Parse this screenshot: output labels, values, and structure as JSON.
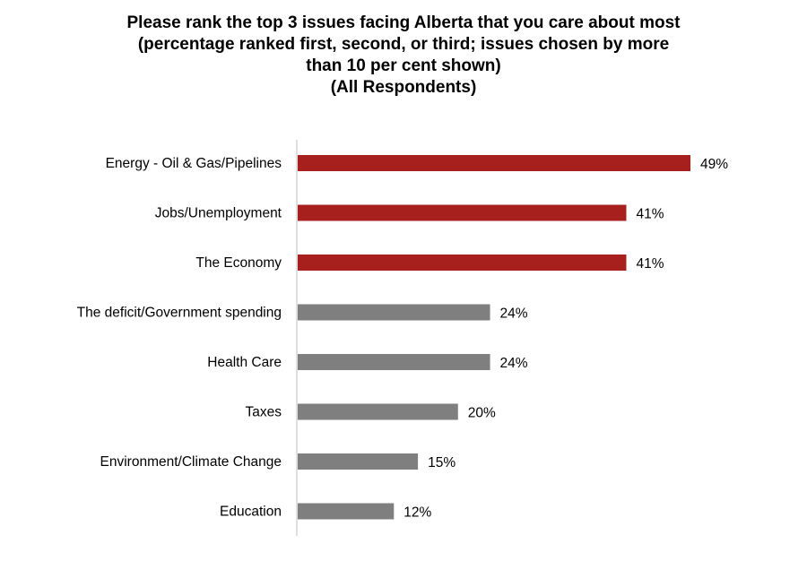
{
  "chart_data": {
    "type": "bar",
    "orientation": "horizontal",
    "title_lines": [
      "Please rank the top 3 issues facing Alberta that you care about most",
      "(percentage ranked first, second, or third; issues chosen by more",
      "than 10 per cent shown)",
      "(All Respondents)"
    ],
    "categories": [
      "Energy - Oil & Gas/Pipelines",
      "Jobs/Unemployment",
      "The Economy",
      "The deficit/Government spending",
      "Health Care",
      "Taxes",
      "Environment/Climate Change",
      "Education"
    ],
    "values": [
      49,
      41,
      41,
      24,
      24,
      20,
      15,
      12
    ],
    "value_labels": [
      "49%",
      "41%",
      "41%",
      "24%",
      "24%",
      "20%",
      "15%",
      "12%"
    ],
    "bar_colors": [
      "#a7201d",
      "#a7201d",
      "#a7201d",
      "#7f7f7f",
      "#7f7f7f",
      "#7f7f7f",
      "#7f7f7f",
      "#7f7f7f"
    ],
    "xlim": [
      0,
      60
    ],
    "grid": false,
    "legend": "none"
  }
}
